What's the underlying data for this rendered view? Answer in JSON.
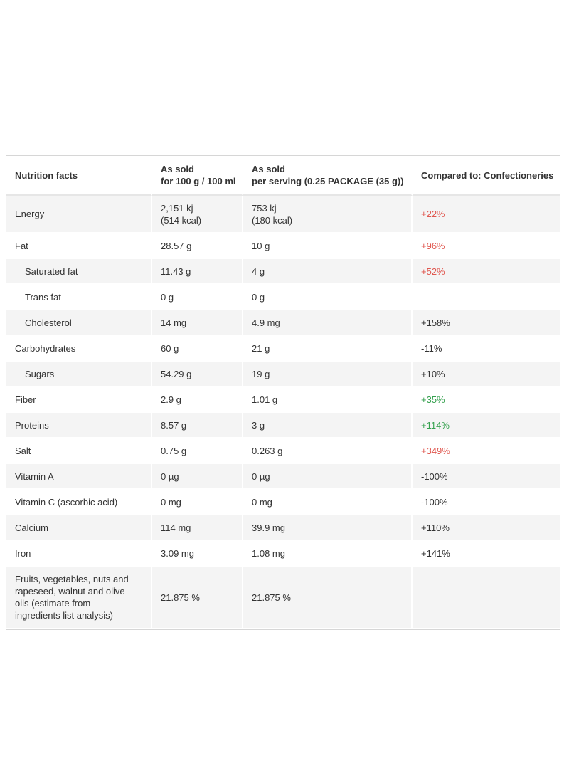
{
  "header": {
    "col1": "Nutrition facts",
    "col2_line1": "As sold",
    "col2_line2": "for 100 g / 100 ml",
    "col3_line1": "As sold",
    "col3_line2": "per serving (0.25 PACKAGE (35 g))",
    "col4": "Compared to: Confectioneries"
  },
  "rows": [
    {
      "name": "Energy",
      "per100_line1": "2,151 kj",
      "per100_line2": "(514 kcal)",
      "serving_line1": "753 kj",
      "serving_line2": "(180 kcal)",
      "compare": "+22%",
      "compare_color": "red"
    },
    {
      "name": "Fat",
      "per100": "28.57 g",
      "serving": "10 g",
      "compare": "+96%",
      "compare_color": "red"
    },
    {
      "name": "Saturated fat",
      "per100": "11.43 g",
      "serving": "4 g",
      "compare": "+52%",
      "compare_color": "red"
    },
    {
      "name": "Trans fat",
      "per100": "0 g",
      "serving": "0 g",
      "compare": "",
      "compare_color": "neutral"
    },
    {
      "name": "Cholesterol",
      "per100": "14 mg",
      "serving": "4.9 mg",
      "compare": "+158%",
      "compare_color": "neutral"
    },
    {
      "name": "Carbohydrates",
      "per100": "60 g",
      "serving": "21 g",
      "compare": "-11%",
      "compare_color": "neutral"
    },
    {
      "name": "Sugars",
      "per100": "54.29 g",
      "serving": "19 g",
      "compare": "+10%",
      "compare_color": "neutral"
    },
    {
      "name": "Fiber",
      "per100": "2.9 g",
      "serving": "1.01 g",
      "compare": "+35%",
      "compare_color": "green"
    },
    {
      "name": "Proteins",
      "per100": "8.57 g",
      "serving": "3 g",
      "compare": "+114%",
      "compare_color": "green"
    },
    {
      "name": "Salt",
      "per100": "0.75 g",
      "serving": "0.263 g",
      "compare": "+349%",
      "compare_color": "red"
    },
    {
      "name": "Vitamin A",
      "per100": "0 µg",
      "serving": "0 µg",
      "compare": "-100%",
      "compare_color": "neutral"
    },
    {
      "name": "Vitamin C (ascorbic acid)",
      "per100": "0 mg",
      "serving": "0 mg",
      "compare": "-100%",
      "compare_color": "neutral"
    },
    {
      "name": "Calcium",
      "per100": "114 mg",
      "serving": "39.9 mg",
      "compare": "+110%",
      "compare_color": "neutral"
    },
    {
      "name": "Iron",
      "per100": "3.09 mg",
      "serving": "1.08 mg",
      "compare": "+141%",
      "compare_color": "neutral"
    },
    {
      "name_line1": "Fruits, vegetables, nuts and",
      "name_line2": "rapeseed, walnut and olive",
      "name_line3": "oils (estimate from",
      "name_line4": "ingredients list analysis)",
      "per100": "21.875 %",
      "serving": "21.875 %",
      "compare": "",
      "compare_color": "neutral"
    }
  ],
  "colors": {
    "red": "#e0574f",
    "green": "#36a14f",
    "neutral": "#333333",
    "stripe": "#f4f4f4",
    "border": "#d6d6d6"
  }
}
